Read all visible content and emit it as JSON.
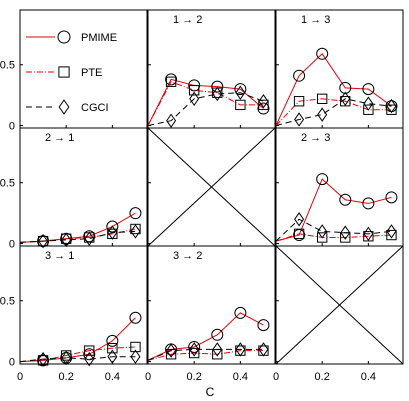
{
  "chart_data": {
    "type": "line",
    "xlabel": "C",
    "x_ticks": [
      0,
      0.2,
      0.4
    ],
    "y_ticks": [
      0,
      0.5
    ],
    "xlim": [
      0,
      0.55
    ],
    "ylim": [
      -0.02,
      0.95
    ],
    "grid": false,
    "legend_position": "top-left panel",
    "series_styles": [
      {
        "name": "PMIME",
        "color": "#e8000b",
        "dash": "",
        "marker": "circle"
      },
      {
        "name": "PTE",
        "color": "#e8000b",
        "dash": "6 2 1 2",
        "marker": "square"
      },
      {
        "name": "CGCI",
        "color": "#000000",
        "dash": "6 4",
        "marker": "diamond"
      }
    ],
    "panels": [
      {
        "row": 0,
        "col": 0,
        "legend": true
      },
      {
        "row": 0,
        "col": 1,
        "label": "1 → 2",
        "x": [
          0,
          0.1,
          0.2,
          0.3,
          0.4,
          0.5
        ],
        "series": [
          {
            "name": "PMIME",
            "values": [
              0,
              0.38,
              0.33,
              0.32,
              0.3,
              0.14
            ]
          },
          {
            "name": "PTE",
            "values": [
              0,
              0.36,
              0.29,
              0.27,
              0.17,
              0.17
            ]
          },
          {
            "name": "CGCI",
            "values": [
              0,
              0.04,
              0.22,
              0.26,
              0.27,
              0.2
            ]
          }
        ]
      },
      {
        "row": 0,
        "col": 2,
        "label": "1 → 3",
        "x": [
          0,
          0.1,
          0.2,
          0.3,
          0.4,
          0.5
        ],
        "series": [
          {
            "name": "PMIME",
            "values": [
              0,
              0.41,
              0.59,
              0.31,
              0.3,
              0.16
            ]
          },
          {
            "name": "PTE",
            "values": [
              0,
              0.2,
              0.22,
              0.2,
              0.13,
              0.13
            ]
          },
          {
            "name": "CGCI",
            "values": [
              0,
              0.05,
              0.09,
              0.22,
              0.18,
              0.16
            ]
          }
        ]
      },
      {
        "row": 1,
        "col": 0,
        "label": "2 → 1",
        "x": [
          0,
          0.1,
          0.2,
          0.3,
          0.4,
          0.5
        ],
        "series": [
          {
            "name": "PMIME",
            "values": [
              0.01,
              0.02,
              0.04,
              0.06,
              0.14,
              0.25
            ]
          },
          {
            "name": "PTE",
            "values": [
              0.01,
              0.02,
              0.04,
              0.05,
              0.08,
              0.12
            ]
          },
          {
            "name": "CGCI",
            "values": [
              0.01,
              0.02,
              0.03,
              0.04,
              0.09,
              0.1
            ]
          }
        ]
      },
      {
        "row": 1,
        "col": 1,
        "crossed": true
      },
      {
        "row": 1,
        "col": 2,
        "label": "2 → 3",
        "x": [
          0,
          0.1,
          0.2,
          0.3,
          0.4,
          0.5
        ],
        "series": [
          {
            "name": "PMIME",
            "values": [
              0.02,
              0.07,
              0.53,
              0.36,
              0.33,
              0.38
            ]
          },
          {
            "name": "PTE",
            "values": [
              0.02,
              0.08,
              0.05,
              0.05,
              0.06,
              0.07
            ]
          },
          {
            "name": "CGCI",
            "values": [
              0.02,
              0.2,
              0.1,
              0.09,
              0.08,
              0.1
            ]
          }
        ]
      },
      {
        "row": 2,
        "col": 0,
        "label": "3 → 1",
        "x": [
          0,
          0.1,
          0.2,
          0.3,
          0.4,
          0.5
        ],
        "series": [
          {
            "name": "PMIME",
            "values": [
              0,
              0.01,
              0.03,
              0.06,
              0.17,
              0.36
            ]
          },
          {
            "name": "PTE",
            "values": [
              0,
              0.01,
              0.05,
              0.09,
              0.11,
              0.12
            ]
          },
          {
            "name": "CGCI",
            "values": [
              0,
              0.02,
              0.03,
              0.02,
              0.04,
              0.04
            ]
          }
        ]
      },
      {
        "row": 2,
        "col": 1,
        "label": "3 → 2",
        "x": [
          0,
          0.1,
          0.2,
          0.3,
          0.4,
          0.5
        ],
        "series": [
          {
            "name": "PMIME",
            "values": [
              0.01,
              0.1,
              0.12,
              0.22,
              0.4,
              0.3
            ]
          },
          {
            "name": "PTE",
            "values": [
              0.01,
              0.06,
              0.07,
              0.06,
              0.09,
              0.09
            ]
          },
          {
            "name": "CGCI",
            "values": [
              0.01,
              0.09,
              0.1,
              0.1,
              0.1,
              0.1
            ]
          }
        ]
      },
      {
        "row": 2,
        "col": 2,
        "crossed": true
      }
    ]
  }
}
